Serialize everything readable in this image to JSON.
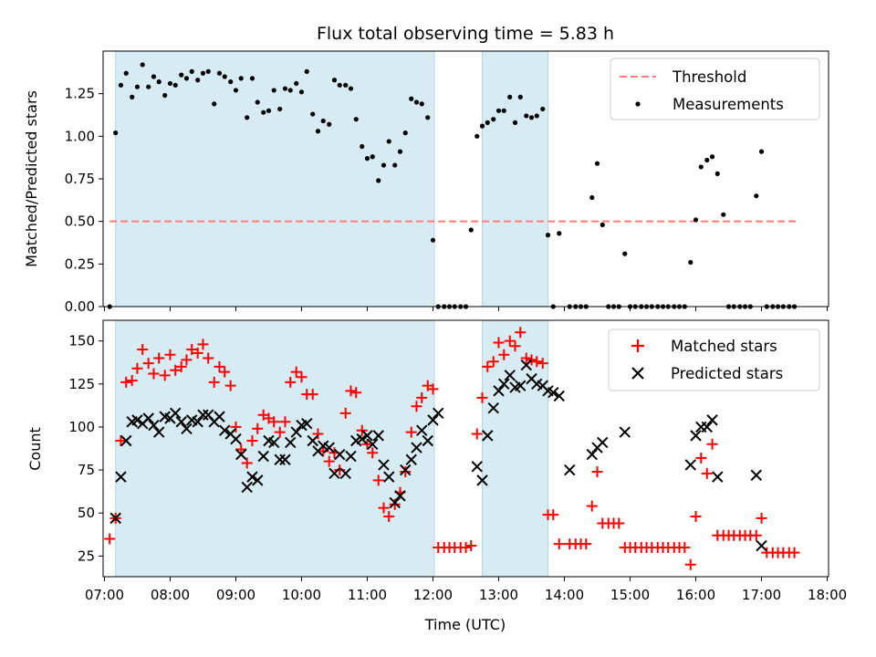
{
  "chart_data": [
    {
      "type": "scatter",
      "title": "Flux total observing time = 5.83 h",
      "xlabel": "",
      "ylabel": "Matched/Predicted stars",
      "ylim": [
        0,
        1.5
      ],
      "yticks": [
        0.0,
        0.25,
        0.5,
        0.75,
        1.0,
        1.25
      ],
      "ytick_labels": [
        "0.00",
        "0.25",
        "0.50",
        "0.75",
        "1.00",
        "1.25"
      ],
      "xlim": [
        6.98,
        18.02
      ],
      "xticks": [
        7,
        8,
        9,
        10,
        11,
        12,
        13,
        14,
        15,
        16,
        17,
        18
      ],
      "legend_position": "top-right",
      "shaded_intervals": [
        [
          7.17,
          12.02
        ],
        [
          12.75,
          13.75
        ]
      ],
      "threshold": {
        "name": "Threshold",
        "value": 0.5,
        "x_range": [
          7.08,
          17.52
        ],
        "color": "#ff7b7b"
      },
      "series": [
        {
          "name": "Measurements",
          "color": "#000000",
          "x": [
            7.08,
            7.17,
            7.25,
            7.33,
            7.42,
            7.5,
            7.58,
            7.67,
            7.75,
            7.83,
            7.92,
            8.0,
            8.08,
            8.17,
            8.25,
            8.33,
            8.42,
            8.5,
            8.58,
            8.67,
            8.75,
            8.83,
            8.92,
            9.0,
            9.08,
            9.17,
            9.25,
            9.33,
            9.42,
            9.5,
            9.58,
            9.67,
            9.75,
            9.83,
            9.92,
            10.0,
            10.08,
            10.17,
            10.25,
            10.33,
            10.42,
            10.5,
            10.58,
            10.67,
            10.75,
            10.83,
            10.92,
            11.0,
            11.08,
            11.17,
            11.25,
            11.33,
            11.42,
            11.5,
            11.58,
            11.67,
            11.75,
            11.83,
            11.92,
            12.0,
            12.08,
            12.17,
            12.25,
            12.33,
            12.42,
            12.5,
            12.58,
            12.67,
            12.75,
            12.83,
            12.92,
            13.0,
            13.08,
            13.17,
            13.25,
            13.33,
            13.42,
            13.5,
            13.58,
            13.67,
            13.75,
            13.83,
            13.92,
            14.08,
            14.17,
            14.25,
            14.33,
            14.42,
            14.5,
            14.58,
            14.67,
            14.75,
            14.83,
            14.92,
            15.0,
            15.08,
            15.17,
            15.25,
            15.33,
            15.42,
            15.5,
            15.58,
            15.67,
            15.75,
            15.83,
            15.92,
            16.0,
            16.08,
            16.17,
            16.25,
            16.33,
            16.42,
            16.5,
            16.58,
            16.67,
            16.75,
            16.83,
            16.92,
            17.0,
            17.08,
            17.17,
            17.25,
            17.33,
            17.42,
            17.5
          ],
          "y": [
            0.0,
            1.02,
            1.3,
            1.37,
            1.23,
            1.29,
            1.42,
            1.29,
            1.35,
            1.32,
            1.24,
            1.31,
            1.3,
            1.36,
            1.34,
            1.38,
            1.33,
            1.37,
            1.38,
            1.19,
            1.37,
            1.35,
            1.32,
            1.27,
            1.34,
            1.11,
            1.34,
            1.2,
            1.14,
            1.15,
            1.27,
            1.16,
            1.28,
            1.27,
            1.31,
            1.26,
            1.38,
            1.13,
            1.03,
            1.09,
            1.07,
            1.33,
            1.3,
            1.3,
            1.28,
            1.1,
            0.94,
            0.87,
            0.88,
            0.74,
            0.83,
            0.97,
            0.83,
            0.91,
            1.02,
            1.22,
            1.2,
            1.19,
            1.11,
            0.39,
            0.0,
            0.0,
            0.0,
            0.0,
            0.0,
            0.0,
            0.45,
            1.0,
            1.06,
            1.08,
            1.1,
            1.15,
            1.15,
            1.23,
            1.08,
            1.23,
            1.12,
            1.11,
            1.12,
            1.16,
            0.42,
            0.0,
            0.43,
            0.0,
            0.0,
            0.0,
            0.0,
            0.64,
            0.84,
            0.48,
            0.0,
            0.0,
            0.0,
            0.31,
            0.0,
            0.0,
            0.0,
            0.0,
            0.0,
            0.0,
            0.0,
            0.0,
            0.0,
            0.0,
            0.0,
            0.26,
            0.51,
            0.82,
            0.86,
            0.88,
            0.78,
            0.54,
            0.0,
            0.0,
            0.0,
            0.0,
            0.0,
            0.65,
            0.91,
            0.0,
            0.0,
            0.0,
            0.0,
            0.0,
            0.0
          ]
        }
      ]
    },
    {
      "type": "scatter",
      "title": "",
      "xlabel": "Time (UTC)",
      "ylabel": "Count",
      "ylim": [
        13,
        162
      ],
      "yticks": [
        25,
        50,
        75,
        100,
        125,
        150
      ],
      "ytick_labels": [
        "25",
        "50",
        "75",
        "100",
        "125",
        "150"
      ],
      "xlim": [
        6.98,
        18.02
      ],
      "xticks": [
        7,
        8,
        9,
        10,
        11,
        12,
        13,
        14,
        15,
        16,
        17,
        18
      ],
      "xtick_labels": [
        "07:00",
        "08:00",
        "09:00",
        "10:00",
        "11:00",
        "12:00",
        "13:00",
        "14:00",
        "15:00",
        "16:00",
        "17:00",
        "18:00"
      ],
      "legend_position": "top-right",
      "shaded_intervals": [
        [
          7.17,
          12.02
        ],
        [
          12.75,
          13.75
        ]
      ],
      "series": [
        {
          "name": "Matched stars",
          "marker": "plus",
          "color": "#ff0000",
          "x": [
            7.08,
            7.17,
            7.25,
            7.33,
            7.42,
            7.5,
            7.58,
            7.67,
            7.75,
            7.83,
            7.92,
            8.0,
            8.08,
            8.17,
            8.25,
            8.33,
            8.42,
            8.5,
            8.58,
            8.67,
            8.75,
            8.83,
            8.92,
            9.0,
            9.08,
            9.17,
            9.25,
            9.33,
            9.42,
            9.5,
            9.58,
            9.67,
            9.75,
            9.83,
            9.92,
            10.0,
            10.08,
            10.17,
            10.25,
            10.33,
            10.42,
            10.5,
            10.58,
            10.67,
            10.75,
            10.83,
            10.92,
            11.0,
            11.08,
            11.17,
            11.25,
            11.33,
            11.42,
            11.5,
            11.58,
            11.67,
            11.75,
            11.83,
            11.92,
            12.0,
            12.08,
            12.17,
            12.25,
            12.33,
            12.42,
            12.5,
            12.58,
            12.67,
            12.75,
            12.83,
            12.92,
            13.0,
            13.08,
            13.17,
            13.25,
            13.33,
            13.42,
            13.5,
            13.58,
            13.67,
            13.75,
            13.83,
            13.92,
            14.08,
            14.17,
            14.25,
            14.33,
            14.42,
            14.5,
            14.58,
            14.67,
            14.75,
            14.83,
            14.92,
            15.0,
            15.08,
            15.17,
            15.25,
            15.33,
            15.42,
            15.5,
            15.58,
            15.67,
            15.75,
            15.83,
            15.92,
            16.0,
            16.08,
            16.17,
            16.25,
            16.33,
            16.42,
            16.5,
            16.58,
            16.67,
            16.75,
            16.83,
            16.92,
            17.0,
            17.08,
            17.17,
            17.25,
            17.33,
            17.42,
            17.5
          ],
          "y": [
            35,
            47,
            92,
            126,
            127,
            134,
            145,
            137,
            131,
            140,
            130,
            142,
            133,
            135,
            139,
            145,
            143,
            148,
            140,
            126,
            135,
            132,
            124,
            100,
            87,
            79,
            92,
            99,
            107,
            105,
            103,
            97,
            103,
            126,
            132,
            129,
            119,
            119,
            96,
            86,
            80,
            85,
            75,
            108,
            121,
            120,
            98,
            90,
            85,
            69,
            53,
            48,
            55,
            62,
            74,
            97,
            112,
            117,
            124,
            122,
            30,
            30,
            30,
            30,
            30,
            30,
            31,
            96,
            117,
            135,
            138,
            149,
            142,
            150,
            147,
            155,
            140,
            139,
            138,
            137,
            49,
            49,
            32,
            32,
            32,
            32,
            32,
            54,
            74,
            44,
            44,
            44,
            44,
            30,
            30,
            30,
            30,
            30,
            30,
            30,
            30,
            30,
            30,
            30,
            30,
            20,
            48,
            82,
            73,
            90,
            37,
            37,
            37,
            37,
            37,
            37,
            37,
            37,
            47,
            27,
            27,
            27,
            27,
            27,
            27
          ]
        },
        {
          "name": "Predicted stars",
          "marker": "x",
          "color": "#000000",
          "x": [
            7.17,
            7.25,
            7.33,
            7.42,
            7.5,
            7.58,
            7.67,
            7.75,
            7.83,
            7.92,
            8.0,
            8.08,
            8.17,
            8.25,
            8.33,
            8.42,
            8.5,
            8.58,
            8.67,
            8.75,
            8.83,
            8.92,
            9.0,
            9.08,
            9.17,
            9.25,
            9.33,
            9.42,
            9.5,
            9.58,
            9.67,
            9.75,
            9.83,
            9.92,
            10.0,
            10.08,
            10.17,
            10.25,
            10.33,
            10.42,
            10.5,
            10.58,
            10.67,
            10.75,
            10.83,
            10.92,
            11.0,
            11.08,
            11.17,
            11.25,
            11.33,
            11.42,
            11.5,
            11.58,
            11.67,
            11.75,
            11.83,
            11.92,
            12.0,
            12.08,
            12.67,
            12.75,
            12.83,
            12.92,
            13.0,
            13.08,
            13.17,
            13.25,
            13.33,
            13.42,
            13.5,
            13.58,
            13.67,
            13.75,
            13.83,
            13.92,
            14.08,
            14.42,
            14.5,
            14.58,
            14.92,
            15.92,
            16.0,
            16.08,
            16.17,
            16.25,
            16.33,
            16.92,
            17.0
          ],
          "y": [
            47,
            71,
            92,
            103,
            104,
            102,
            105,
            101,
            97,
            106,
            105,
            108,
            103,
            99,
            104,
            103,
            107,
            107,
            103,
            106,
            98,
            96,
            93,
            84,
            65,
            71,
            69,
            83,
            92,
            91,
            81,
            81,
            91,
            97,
            101,
            102,
            92,
            86,
            89,
            88,
            73,
            84,
            73,
            83,
            92,
            93,
            95,
            90,
            95,
            78,
            71,
            56,
            60,
            75,
            81,
            88,
            98,
            92,
            104,
            108,
            77,
            69,
            95,
            111,
            121,
            125,
            130,
            123,
            124,
            136,
            128,
            125,
            124,
            121,
            120,
            118,
            75,
            84,
            88,
            91,
            97,
            78,
            95,
            100,
            100,
            104,
            71,
            72,
            31
          ]
        }
      ]
    }
  ]
}
